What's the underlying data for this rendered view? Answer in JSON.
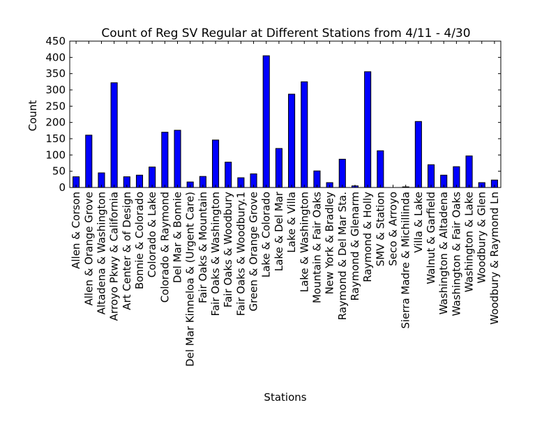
{
  "chart_data": {
    "type": "bar",
    "title": "Count of Reg SV Regular at Different Stations from 4/11 - 4/30",
    "xlabel": "Stations",
    "ylabel": "Count",
    "ylim": [
      0,
      450
    ],
    "yticks": [
      0,
      50,
      100,
      150,
      200,
      250,
      300,
      350,
      400,
      450
    ],
    "grid": false,
    "bar_color": "#0000ff",
    "categories": [
      "Allen & Corson",
      "Allen & Orange Grove",
      "Altadena & Washington",
      "Arroyo Pkwy & California",
      "Art Center & of Design",
      "Bonnie & Colorado",
      "Colorado & Lake",
      "Colorado & Raymond",
      "Del Mar & Bonnie",
      "Del Mar Kinneloa & (Urgent Care)",
      "Fair Oaks & Mountain",
      "Fair Oaks & Washington",
      "Fair Oaks & Woodbury",
      "Fair Oaks & Woodbury.1",
      "Green & Orange Grove",
      "Lake & Colorado",
      "Lake & Del Mar",
      "Lake & Villa",
      "Lake & Washington",
      "Mountain & Fair Oaks",
      "New York & Bradley",
      "Raymond & Del Mar Sta.",
      "Raymond & Glenarm",
      "Raymond & Holly",
      "SMV & Station",
      "Seco & Arroyo",
      "Sierra Madre & Michillinda",
      "Villa & Lake",
      "Walnut & Garfield",
      "Washington & Altadena",
      "Washington & Fair Oaks",
      "Washington & Lake",
      "Woodbury & Glen",
      "Woodbury & Raymond Ln"
    ],
    "values": [
      33,
      161,
      45,
      322,
      33,
      38,
      63,
      170,
      176,
      17,
      34,
      146,
      78,
      30,
      42,
      405,
      120,
      287,
      325,
      51,
      15,
      87,
      5,
      356,
      113,
      0,
      2,
      203,
      70,
      38,
      64,
      97,
      15,
      23
    ]
  }
}
